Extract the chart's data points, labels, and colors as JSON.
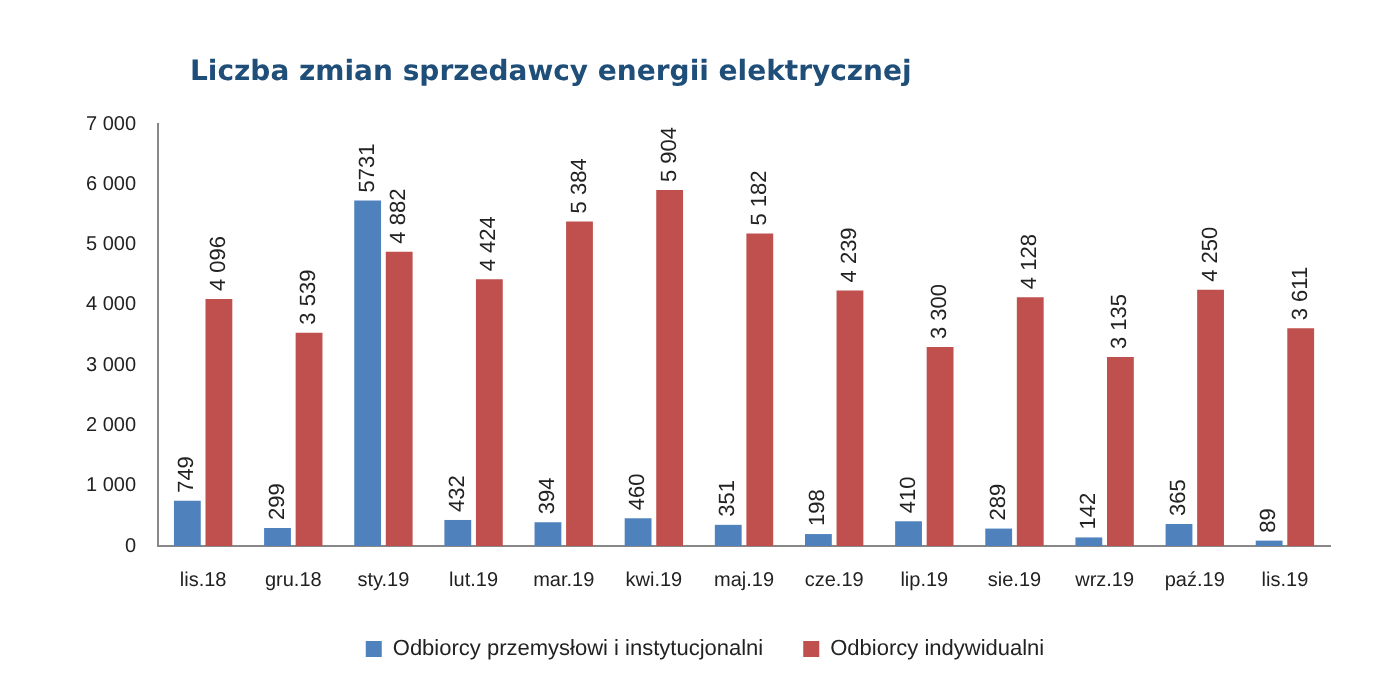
{
  "chart_data": {
    "type": "bar",
    "title": "Liczba zmian sprzedawcy energii elektrycznej",
    "categories": [
      "lis.18",
      "gru.18",
      "sty.19",
      "lut.19",
      "mar.19",
      "kwi.19",
      "maj.19",
      "cze.19",
      "lip.19",
      "sie.19",
      "wrz.19",
      "paź.19",
      "lis.19"
    ],
    "series": [
      {
        "name": "Odbiorcy przemysłowi i instytucjonalni",
        "color": "#4f81bd",
        "values": [
          749,
          299,
          5731,
          432,
          394,
          460,
          351,
          198,
          410,
          289,
          142,
          365,
          89
        ],
        "value_labels": [
          "749",
          "299",
          "5731",
          "432",
          "394",
          "460",
          "351",
          "198",
          "410",
          "289",
          "142",
          "365",
          "89"
        ]
      },
      {
        "name": "Odbiorcy indywidualni",
        "color": "#c0504d",
        "values": [
          4096,
          3539,
          4882,
          4424,
          5384,
          5904,
          5182,
          4239,
          3300,
          4128,
          3135,
          4250,
          3611
        ],
        "value_labels": [
          "4 096",
          "3 539",
          "4 882",
          "4 424",
          "5 384",
          "5 904",
          "5 182",
          "4 239",
          "3 300",
          "4 128",
          "3 135",
          "4 250",
          "3 611"
        ]
      }
    ],
    "ylim": [
      0,
      7000
    ],
    "yticks": [
      {
        "value": 0,
        "label": "0"
      },
      {
        "value": 1000,
        "label": "1 000"
      },
      {
        "value": 2000,
        "label": "2 000"
      },
      {
        "value": 3000,
        "label": "3 000"
      },
      {
        "value": 4000,
        "label": "4 000"
      },
      {
        "value": 5000,
        "label": "5 000"
      },
      {
        "value": 6000,
        "label": "6 000"
      },
      {
        "value": 7000,
        "label": "7 000"
      }
    ],
    "grid": false,
    "legend": "bottom"
  }
}
